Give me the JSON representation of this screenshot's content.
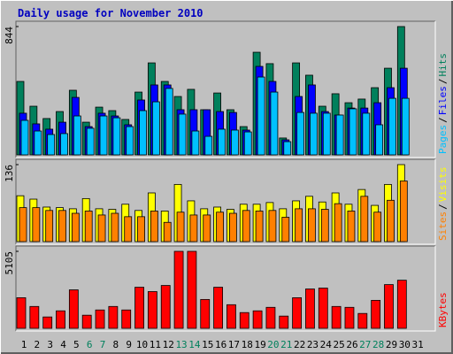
{
  "chart_data": [
    {
      "type": "bar",
      "title": "Daily usage for November 2010",
      "ylim": [
        0,
        844
      ],
      "yticks": [
        844
      ],
      "legend_separator": "/",
      "series": [
        {
          "name": "Hits",
          "color": "#00805c",
          "values": [
            483,
            320,
            239,
            285,
            425,
            215,
            314,
            291,
            233,
            413,
            605,
            483,
            384,
            431,
            297,
            407,
            297,
            186,
            675,
            600,
            111,
            605,
            524,
            320,
            402,
            343,
            367,
            442,
            570,
            844,
            null
          ]
        },
        {
          "name": "Files",
          "color": "#0000ff",
          "values": [
            274,
            204,
            169,
            215,
            378,
            186,
            274,
            256,
            198,
            361,
            460,
            460,
            297,
            297,
            297,
            285,
            279,
            163,
            582,
            483,
            99,
            384,
            460,
            285,
            262,
            308,
            308,
            343,
            442,
            570,
            null
          ]
        },
        {
          "name": "Pages",
          "color": "#00c0ff",
          "values": [
            227,
            157,
            134,
            140,
            256,
            175,
            256,
            244,
            186,
            291,
            349,
            437,
            268,
            157,
            122,
            169,
            163,
            151,
            512,
            413,
            87,
            279,
            274,
            274,
            262,
            303,
            274,
            198,
            372,
            372,
            null
          ]
        }
      ]
    },
    {
      "type": "bar",
      "ylim": [
        0,
        136
      ],
      "yticks": [
        136
      ],
      "legend_separator": "/",
      "series": [
        {
          "name": "Visits",
          "color": "#ffff00",
          "values": [
            81,
            75,
            61,
            60,
            58,
            76,
            58,
            57,
            66,
            55,
            86,
            54,
            101,
            72,
            58,
            61,
            57,
            66,
            66,
            69,
            58,
            72,
            80,
            70,
            86,
            66,
            92,
            64,
            101,
            136,
            null
          ]
        },
        {
          "name": "Sites",
          "color": "#ff8000",
          "values": [
            60,
            60,
            55,
            55,
            50,
            54,
            47,
            50,
            44,
            44,
            54,
            34,
            52,
            47,
            47,
            52,
            50,
            55,
            54,
            55,
            43,
            58,
            58,
            57,
            67,
            54,
            80,
            52,
            73,
            107,
            null
          ]
        }
      ]
    },
    {
      "type": "bar",
      "ylim": [
        0,
        5105
      ],
      "yticks": [
        5105
      ],
      "categories": [
        "1",
        "2",
        "3",
        "4",
        "5",
        "6",
        "7",
        "8",
        "9",
        "10",
        "11",
        "12",
        "13",
        "14",
        "15",
        "16",
        "17",
        "18",
        "19",
        "20",
        "21",
        "22",
        "23",
        "24",
        "25",
        "26",
        "27",
        "28",
        "29",
        "30",
        "31"
      ],
      "category_colors": [
        "#000000",
        "#000000",
        "#000000",
        "#000000",
        "#000000",
        "#00805c",
        "#00805c",
        "#000000",
        "#000000",
        "#000000",
        "#000000",
        "#000000",
        "#00805c",
        "#00805c",
        "#000000",
        "#000000",
        "#000000",
        "#000000",
        "#000000",
        "#00805c",
        "#00805c",
        "#000000",
        "#000000",
        "#000000",
        "#000000",
        "#000000",
        "#00805c",
        "#00805c",
        "#000000",
        "#000000",
        "#000000"
      ],
      "series": [
        {
          "name": "KBytes",
          "color": "#ff0000",
          "values": [
            2030,
            1450,
            754,
            1160,
            2552,
            870,
            1218,
            1450,
            1218,
            2726,
            2436,
            2842,
            5105,
            5105,
            1914,
            2726,
            1566,
            1044,
            1160,
            1392,
            812,
            2030,
            2610,
            2668,
            1450,
            1392,
            986,
            1856,
            2900,
            3190,
            null
          ]
        }
      ]
    }
  ]
}
